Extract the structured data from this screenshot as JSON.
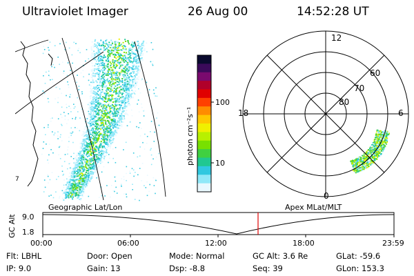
{
  "header": {
    "instrument": "Ultraviolet Imager",
    "date": "26 Aug 00",
    "time": "14:52:28 UT"
  },
  "colorbar": {
    "unit_label": "photon cm⁻²s⁻¹",
    "ticks": [
      "100",
      "10"
    ],
    "colors": [
      "#0a0a2e",
      "#3b0a5a",
      "#7a0a6e",
      "#b0002a",
      "#e00000",
      "#ff4000",
      "#ff8c00",
      "#ffc800",
      "#f0f000",
      "#b8f000",
      "#78e000",
      "#40d040",
      "#20c890",
      "#30c8e0",
      "#90e8f8",
      "#e8f8ff"
    ]
  },
  "left_panel": {
    "label": "Geographic Lat/Lon",
    "coast_marker": "7"
  },
  "right_panel": {
    "label": "Apex MLat/MLT",
    "mlt_labels": {
      "top": "12",
      "left": "18",
      "right": "6",
      "bottom": "0"
    },
    "lat_labels": [
      "60",
      "70",
      "80"
    ]
  },
  "altitude_plot": {
    "ylabel": "GC Alt",
    "yticks": [
      "9.0",
      "1.8"
    ],
    "xticks": [
      "00:00",
      "06:00",
      "12:00",
      "18:00",
      "23:59"
    ],
    "marker_color": "#e00000"
  },
  "info": {
    "filter": "Flt: LBHL",
    "ip": "IP:  9.0",
    "door": "Door: Open",
    "gain": "Gain: 13",
    "mode": "Mode: Normal",
    "dsp": "Dsp:    -8.8",
    "gc_alt": "GC Alt: 3.6 Re",
    "seq": "Seq: 39",
    "glat": "GLat: -59.6",
    "glon": "GLon: 153.3"
  }
}
